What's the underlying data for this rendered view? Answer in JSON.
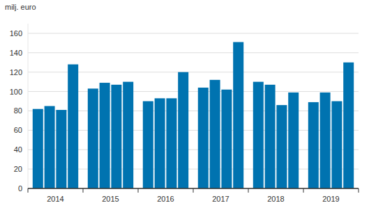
{
  "chart_data": {
    "type": "bar",
    "y_label": "milj. euro",
    "categories": [
      "2014",
      "2015",
      "2016",
      "2017",
      "2018",
      "2019"
    ],
    "series": [
      {
        "color": "#0073b0",
        "values": [
          82,
          103,
          90,
          104,
          110,
          89
        ]
      },
      {
        "color": "#0073b0",
        "values": [
          85,
          109,
          93,
          112,
          107,
          99
        ]
      },
      {
        "color": "#0073b0",
        "values": [
          81,
          107,
          93,
          102,
          86,
          90
        ]
      },
      {
        "color": "#0073b0",
        "values": [
          128,
          110,
          120,
          151,
          99,
          130
        ]
      }
    ],
    "ylim": [
      0,
      170
    ],
    "yticks": [
      0,
      20,
      40,
      60,
      80,
      100,
      120,
      140,
      160
    ],
    "grid": true
  }
}
